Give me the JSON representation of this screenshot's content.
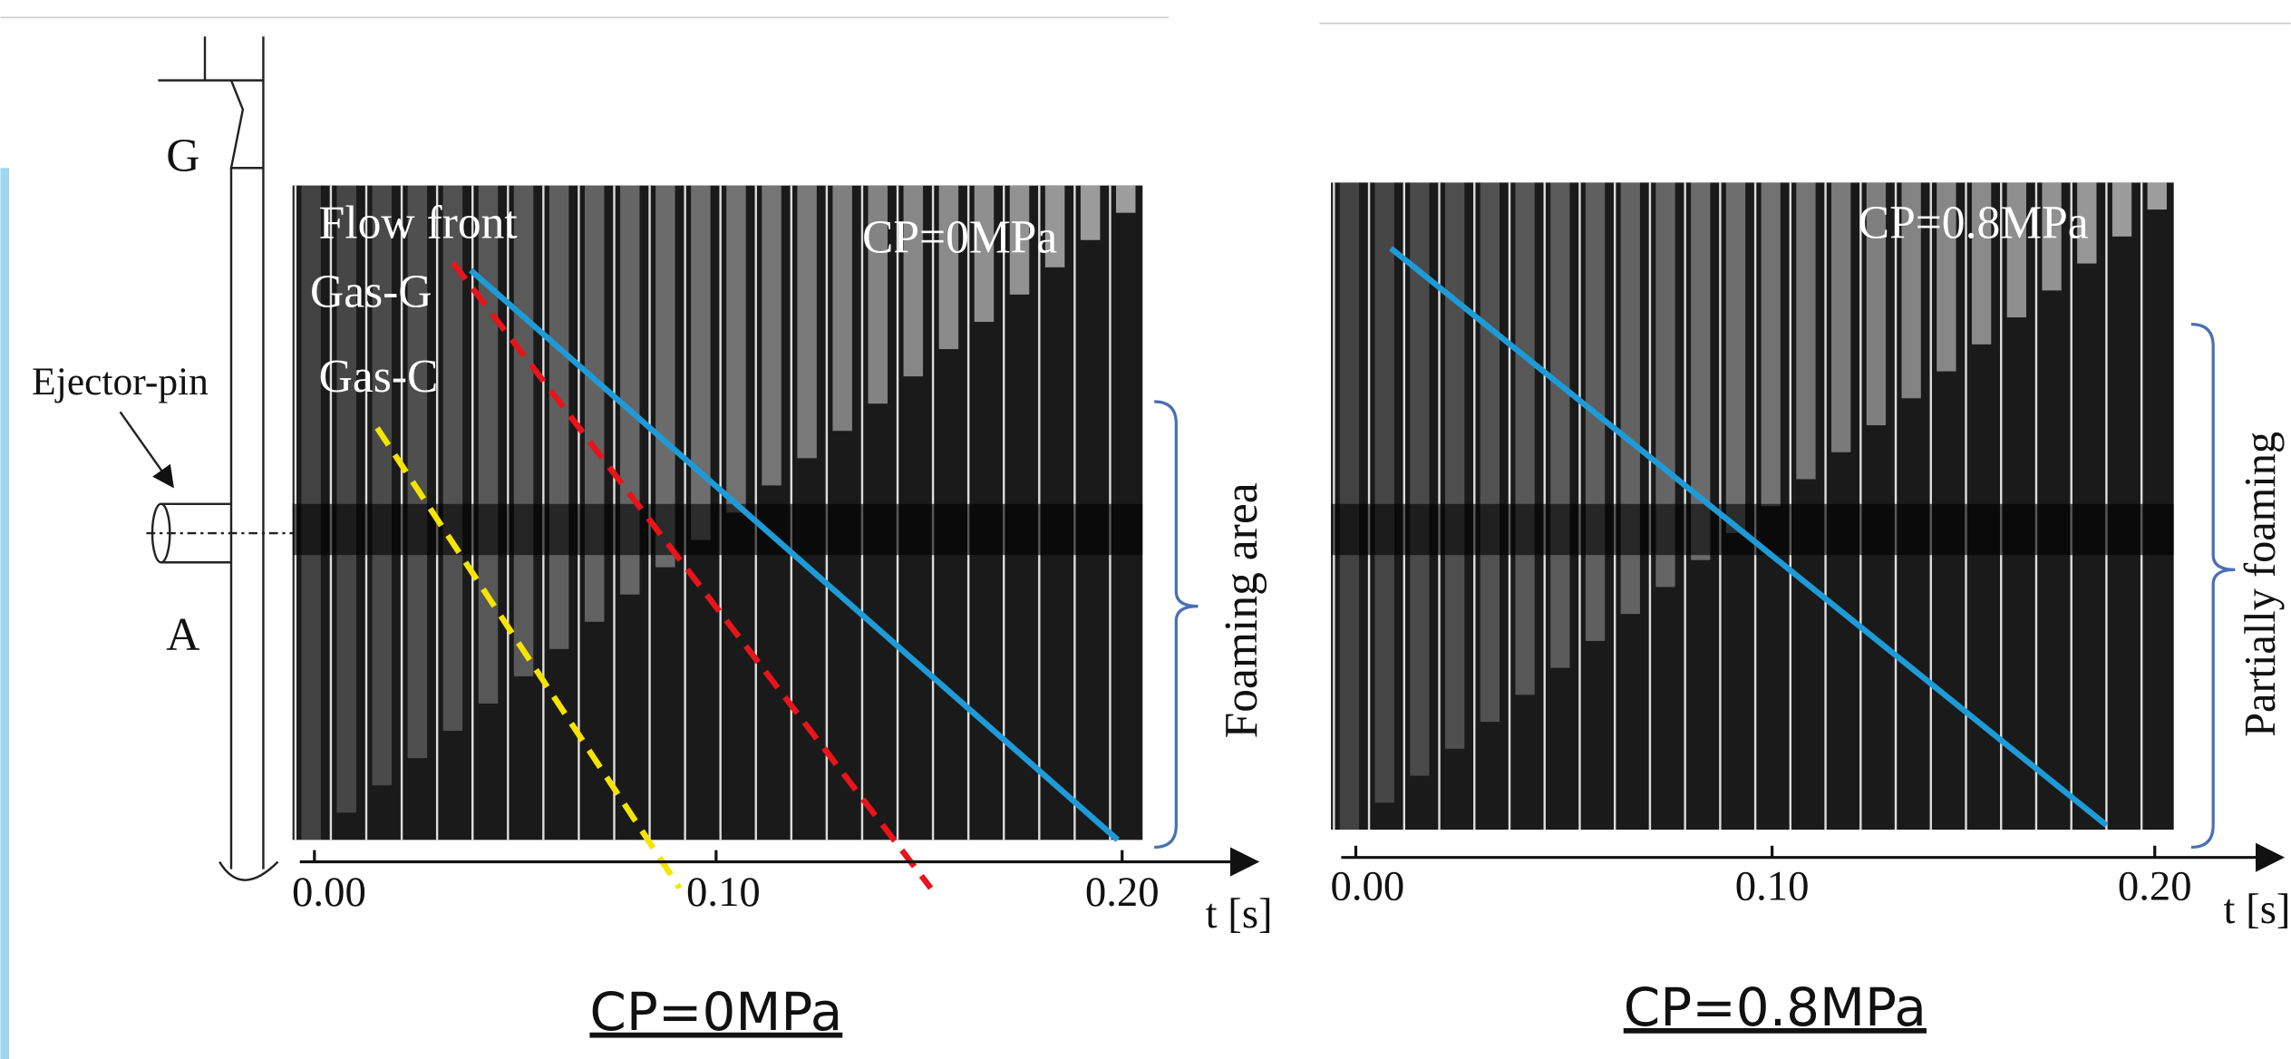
{
  "diagram": {
    "gate_label": "G",
    "point_label": "A",
    "ejector_label": "Ejector-pin"
  },
  "panels": [
    {
      "labels": [
        "Flow front",
        "Gas-G",
        "Gas-C"
      ],
      "condition": "CP=0MPa",
      "ticks": [
        "0.00",
        "0.10",
        "0.20"
      ],
      "axis_label": "t [s]",
      "region_label": "Foaming area",
      "caption": "CP=0MPa"
    },
    {
      "condition": "CP=0.8MPa",
      "ticks": [
        "0.00",
        "0.10",
        "0.20"
      ],
      "axis_label": "t [s]",
      "region_label": "Partially foaming",
      "caption": "CP=0.8MPa"
    }
  ]
}
